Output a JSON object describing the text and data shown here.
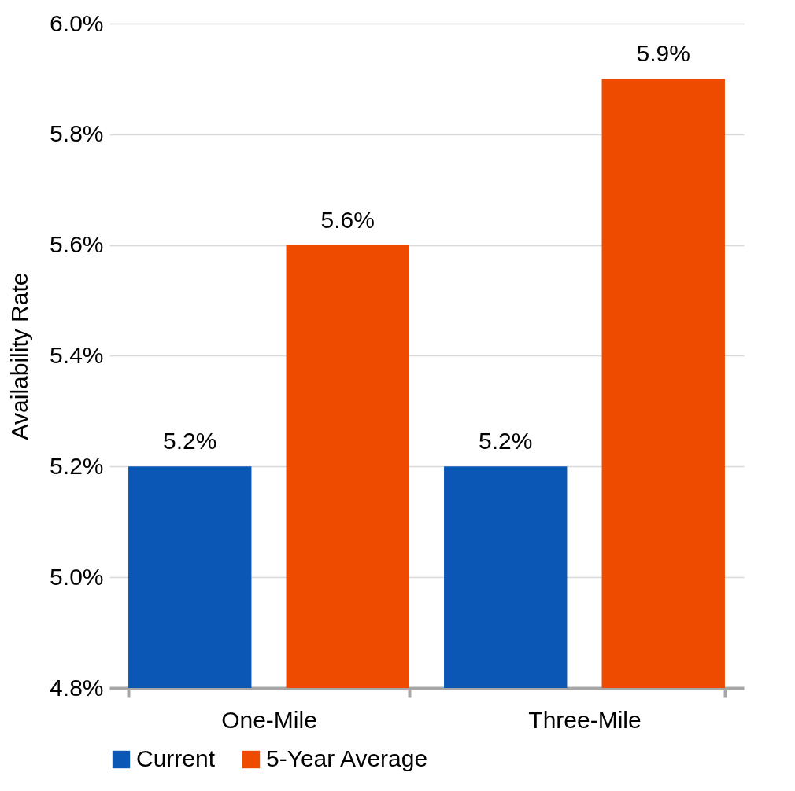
{
  "chart_data": {
    "type": "bar",
    "ylabel": "Availability Rate",
    "categories": [
      "One-Mile",
      "Three-Mile"
    ],
    "series": [
      {
        "name": "Current",
        "color": "#0a57b5",
        "values": [
          5.2,
          5.2
        ],
        "value_labels": [
          "5.2%",
          "5.2%"
        ]
      },
      {
        "name": "5-Year Average",
        "color": "#ee4a00",
        "values": [
          5.6,
          5.9
        ],
        "value_labels": [
          "5.6%",
          "5.9%"
        ]
      }
    ],
    "ylim": [
      4.8,
      6.0
    ],
    "yticks": [
      {
        "value": 4.8,
        "label": "4.8%"
      },
      {
        "value": 5.0,
        "label": "5.0%"
      },
      {
        "value": 5.2,
        "label": "5.2%"
      },
      {
        "value": 5.4,
        "label": "5.4%"
      },
      {
        "value": 5.6,
        "label": "5.6%"
      },
      {
        "value": 5.8,
        "label": "5.8%"
      },
      {
        "value": 6.0,
        "label": "6.0%"
      }
    ],
    "grid": "y",
    "legend": "bottom"
  }
}
